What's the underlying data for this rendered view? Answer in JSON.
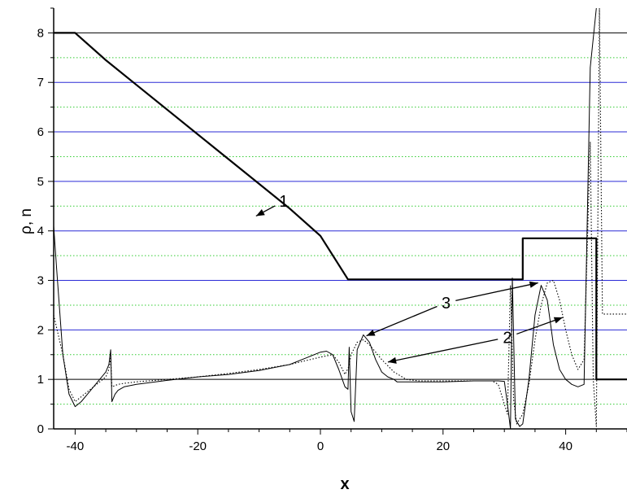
{
  "chart_data": {
    "type": "line",
    "title": "",
    "xlabel": "x",
    "ylabel": "ρ, n",
    "xlim": [
      -43.5,
      50
    ],
    "ylim": [
      0,
      8.5
    ],
    "x_ticks": [
      -40,
      -20,
      0,
      20,
      40
    ],
    "x_tick_labels": [
      "-40",
      "-20",
      "0",
      "20",
      "40"
    ],
    "y_ticks": [
      0,
      1,
      2,
      3,
      4,
      5,
      6,
      7,
      8
    ],
    "y_tick_labels": [
      "0",
      "1",
      "2",
      "3",
      "4",
      "5",
      "6",
      "7",
      "8"
    ],
    "grid": {
      "major_y_lines": [
        1,
        2,
        3,
        4,
        5,
        6,
        7
      ],
      "major_y_colors": [
        "#000000",
        "#2b2bd6",
        "#2b2bd6",
        "#2b2bd6",
        "#2b2bd6",
        "#2b2bd6",
        "#2b2bd6"
      ],
      "top_line": 8,
      "minor_y_step": 0.5,
      "minor_color": "#33cc33"
    },
    "series": [
      {
        "style": "thick-solid",
        "x": [
          -43.5,
          -40,
          -35,
          -30,
          -25,
          -20,
          -15,
          -10,
          -5,
          0,
          4.5,
          33,
          33,
          45,
          45,
          50
        ],
        "y": [
          8,
          8,
          7.45,
          6.95,
          6.45,
          5.95,
          5.45,
          4.95,
          4.45,
          3.9,
          3.02,
          3.02,
          3.85,
          3.85,
          1.0,
          1.0
        ]
      },
      {
        "style": "thin-solid",
        "x": [
          -43.5,
          -43,
          -42,
          -41,
          -40,
          -39,
          -38,
          -37,
          -36,
          -35,
          -34.5,
          -34.2,
          -34,
          -33.5,
          -33,
          -32,
          -30,
          -25,
          -20,
          -15,
          -10,
          -5,
          -2,
          0,
          1,
          2,
          3,
          4,
          4.5,
          4.7,
          5,
          5.5,
          6,
          7,
          8,
          9,
          10,
          11,
          12,
          12.5,
          20,
          25,
          29,
          30,
          30.5,
          31,
          31.3,
          31.8,
          32.5,
          33,
          34,
          35,
          36,
          37,
          38,
          39,
          40,
          41,
          42,
          43,
          44,
          45
        ],
        "y": [
          4.1,
          3.2,
          1.5,
          0.7,
          0.45,
          0.55,
          0.7,
          0.85,
          1.0,
          1.15,
          1.3,
          1.6,
          0.55,
          0.7,
          0.78,
          0.85,
          0.9,
          0.98,
          1.05,
          1.1,
          1.18,
          1.3,
          1.45,
          1.55,
          1.57,
          1.5,
          1.2,
          0.85,
          0.8,
          1.65,
          0.35,
          0.15,
          1.6,
          1.9,
          1.75,
          1.4,
          1.15,
          1.05,
          1.0,
          0.95,
          0.95,
          0.97,
          0.97,
          0.96,
          0.5,
          0.0,
          3.05,
          0.2,
          0.05,
          0.1,
          1.0,
          2.3,
          2.9,
          2.6,
          1.7,
          1.2,
          1.0,
          0.9,
          0.85,
          0.9,
          7.3,
          8.5
        ]
      },
      {
        "style": "dotted",
        "x": [
          -43.5,
          -42,
          -41,
          -40,
          -38,
          -36,
          -35,
          -34.5,
          -34.2,
          -34,
          -33,
          -32,
          -30,
          -25,
          -20,
          -15,
          -10,
          -5,
          0,
          2,
          3,
          4,
          4.6,
          5,
          6,
          7,
          8,
          9,
          10,
          12,
          14,
          16,
          20,
          25,
          28,
          29,
          30,
          30.5,
          31,
          31.5,
          32,
          33,
          34,
          35,
          36,
          37,
          38,
          39,
          40,
          41,
          42,
          43,
          44,
          44.5,
          45,
          45.5,
          46,
          50
        ],
        "y": [
          2.3,
          1.5,
          0.8,
          0.55,
          0.75,
          0.95,
          1.05,
          1.2,
          1.45,
          0.85,
          0.9,
          0.92,
          0.95,
          1.0,
          1.05,
          1.12,
          1.2,
          1.3,
          1.45,
          1.5,
          1.35,
          1.1,
          1.25,
          1.5,
          1.75,
          1.8,
          1.7,
          1.55,
          1.4,
          1.15,
          1.0,
          0.97,
          0.97,
          0.97,
          0.97,
          0.9,
          0.5,
          0.3,
          2.9,
          0.6,
          0.1,
          0.3,
          0.9,
          1.8,
          2.5,
          2.95,
          3.0,
          2.6,
          2.0,
          1.5,
          1.2,
          1.4,
          5.8,
          1.0,
          0.05,
          8.5,
          2.32,
          2.32
        ]
      }
    ],
    "annotations": [
      {
        "text": "1",
        "text_at": [
          -6,
          4.6
        ],
        "arrow_to": [
          -10.5,
          4.3
        ]
      },
      {
        "text": "2",
        "text_at": [
          30.5,
          1.85
        ],
        "arrows_to": [
          [
            11,
            1.35
          ],
          [
            39.5,
            2.25
          ]
        ]
      },
      {
        "text": "3",
        "text_at": [
          20.5,
          2.55
        ],
        "arrows_to": [
          [
            7.5,
            1.88
          ],
          [
            35.5,
            2.95
          ]
        ]
      }
    ]
  }
}
